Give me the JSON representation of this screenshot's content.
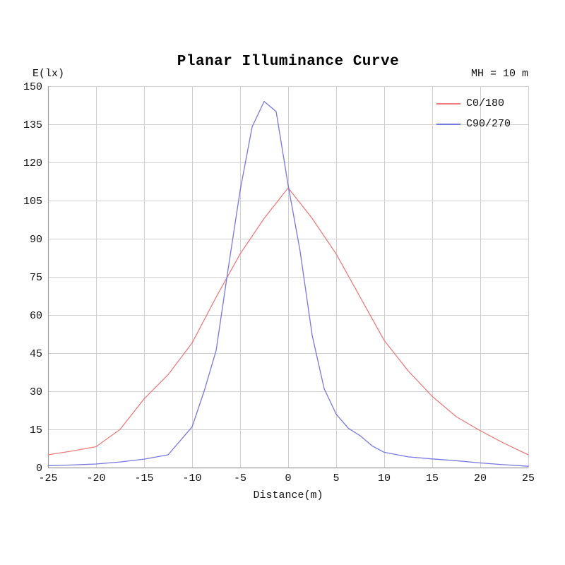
{
  "chart_data": {
    "type": "line",
    "title": "Planar Illuminance Curve",
    "ylabel": "E(lx)",
    "xlabel": "Distance(m)",
    "annotation": "MH = 10 m",
    "xlim": [
      -25,
      25
    ],
    "ylim": [
      0,
      150
    ],
    "x_ticks": [
      -25,
      -20,
      -15,
      -10,
      -5,
      0,
      5,
      10,
      15,
      20,
      25
    ],
    "y_ticks": [
      0,
      15,
      30,
      45,
      60,
      75,
      90,
      105,
      120,
      135,
      150
    ],
    "grid": true,
    "legend_position": "top-right-inside",
    "colors": {
      "grid": "#cfcfcf",
      "axis": "#9c9c9c",
      "text": "#111111",
      "c0_180": "#ee7c7c",
      "c90_270": "#7678dd"
    },
    "series": [
      {
        "name": "C0/180",
        "color": "#ee7c7c",
        "x": [
          -25,
          -22.5,
          -20,
          -17.5,
          -15,
          -12.5,
          -10,
          -7.5,
          -5,
          -2.5,
          0,
          2.5,
          5,
          7.5,
          10,
          12.5,
          15,
          17.5,
          20,
          22.5,
          25
        ],
        "y": [
          5,
          6.5,
          8.2,
          15,
          27,
          36.5,
          49,
          67,
          84,
          98,
          110,
          98,
          84,
          67,
          50,
          38,
          28,
          20,
          14.5,
          9.5,
          5
        ]
      },
      {
        "name": "C90/270",
        "color": "#7678dd",
        "x": [
          -25,
          -22.5,
          -20,
          -17.5,
          -15,
          -12.5,
          -10,
          -8.75,
          -7.5,
          -6.25,
          -5,
          -3.75,
          -2.5,
          -1.25,
          0,
          1.25,
          2.5,
          3.75,
          5,
          6.25,
          7.5,
          8.75,
          10,
          12.5,
          15,
          17.5,
          20,
          22.5,
          25
        ],
        "y": [
          0.7,
          1.0,
          1.4,
          2.2,
          3.3,
          5.0,
          16,
          30,
          46,
          78,
          109,
          134,
          144,
          140,
          111,
          85,
          52,
          31,
          21,
          15.5,
          12.5,
          8.5,
          6,
          4.2,
          3.4,
          2.7,
          1.8,
          1.1,
          0.5
        ]
      }
    ]
  }
}
